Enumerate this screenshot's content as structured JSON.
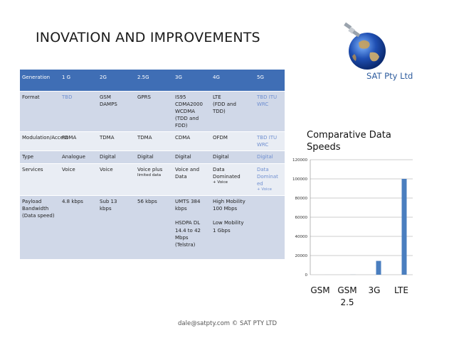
{
  "slide": {
    "title": "INOVATION AND IMPROVEMENTS",
    "brand": "SAT Pty Ltd",
    "footer": "dale@satpty.com  © SAT PTY LTD"
  },
  "table": {
    "headers": [
      "Generation",
      "1 G",
      "2G",
      "2.5G",
      "3G",
      "4G",
      "5G"
    ],
    "rows": [
      {
        "label": "Format",
        "cells": [
          {
            "lines": [
              "TBD"
            ],
            "tbd": true
          },
          {
            "lines": [
              "GSM",
              "DAMPS"
            ]
          },
          {
            "lines": [
              "GPRS"
            ]
          },
          {
            "lines": [
              "IS95",
              "CDMA2000",
              "WCDMA",
              "(TDD and",
              "FDD)"
            ]
          },
          {
            "lines": [
              "LTE",
              "(FDD and",
              "TDD)"
            ]
          },
          {
            "lines": [
              "TBD ITU",
              "WRC"
            ],
            "tbd": true
          }
        ]
      },
      {
        "label": "Modulation/Access",
        "cells": [
          {
            "lines": [
              "FDMA"
            ]
          },
          {
            "lines": [
              "TDMA"
            ]
          },
          {
            "lines": [
              "TDMA"
            ]
          },
          {
            "lines": [
              "CDMA"
            ]
          },
          {
            "lines": [
              "OFDM"
            ]
          },
          {
            "lines": [
              "TBD ITU",
              "WRC"
            ],
            "tbd": true
          }
        ]
      },
      {
        "label": "Type",
        "cells": [
          {
            "lines": [
              "Analogue"
            ]
          },
          {
            "lines": [
              "Digital"
            ]
          },
          {
            "lines": [
              "Digital"
            ]
          },
          {
            "lines": [
              "Digital"
            ]
          },
          {
            "lines": [
              "Digital"
            ]
          },
          {
            "lines": [
              "Digital"
            ],
            "tbd": true
          }
        ]
      },
      {
        "label": "Services",
        "cells": [
          {
            "lines": [
              "Voice"
            ]
          },
          {
            "lines": [
              "Voice"
            ]
          },
          {
            "lines": [
              "Voice plus"
            ],
            "small": "limited data"
          },
          {
            "lines": [
              "Voice and",
              "Data"
            ]
          },
          {
            "lines": [
              "Data",
              "Dominated"
            ],
            "small": "+ Voice"
          },
          {
            "lines": [
              "Data",
              "Dominat",
              "ed"
            ],
            "small": "+ Voice",
            "tbd": true
          }
        ]
      },
      {
        "label": "Payload Bandwidth (Data speed)",
        "cells": [
          {
            "lines": [
              "4.8 kbps"
            ]
          },
          {
            "lines": [
              "Sub 13",
              "kbps"
            ]
          },
          {
            "lines": [
              "56 kbps"
            ]
          },
          {
            "lines": [
              "UMTS 384",
              "kbps",
              "",
              "HSDPA DL",
              "14.4 to 42",
              "Mbps",
              "(Telstra)"
            ]
          },
          {
            "lines": [
              "High Mobility",
              "100 Mbps",
              "",
              "Low Mobility",
              "1 Gbps"
            ]
          },
          {
            "lines": [
              ""
            ]
          }
        ]
      }
    ]
  },
  "chart_data": {
    "type": "bar",
    "title": "Comparative Data Speeds",
    "categories": [
      "GSM",
      "GSM 2.5",
      "3G",
      "LTE"
    ],
    "category_lines": [
      [
        "GSM"
      ],
      [
        "GSM",
        "2.5"
      ],
      [
        "3G"
      ],
      [
        "LTE"
      ]
    ],
    "values": [
      4.8,
      56,
      14400,
      100000
    ],
    "ylim": [
      0,
      120000
    ],
    "yticks": [
      0,
      20000,
      40000,
      60000,
      80000,
      100000,
      120000
    ],
    "grid": true,
    "bar_color": "#4a7ebf"
  },
  "colors": {
    "header_bg": "#3f6eb5",
    "row_dark": "#d0d8e8",
    "row_light": "#e9edf4",
    "tbd_text": "#6f8fd0",
    "brand": "#2e5c9e"
  }
}
